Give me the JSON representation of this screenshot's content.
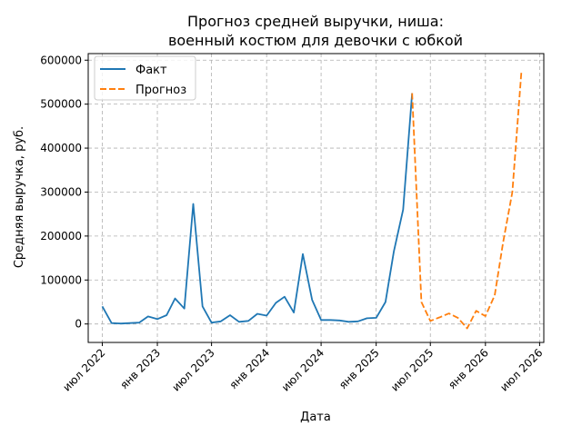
{
  "chart_data": {
    "type": "line",
    "title_lines": [
      "Прогноз средней выручки, ниша:",
      "военный костюм для девочки с юбкой"
    ],
    "xlabel": "Дата",
    "ylabel": "Средняя выручка, руб.",
    "x_range": [
      "2022-05-15",
      "2026-07-15"
    ],
    "ylim": [
      -42000,
      615000
    ],
    "grid": true,
    "legend_position": "top-left",
    "x_ticks": [
      {
        "date": "2022-07-01",
        "label": "июл 2022"
      },
      {
        "date": "2023-01-01",
        "label": "янв 2023"
      },
      {
        "date": "2023-07-01",
        "label": "июл 2023"
      },
      {
        "date": "2024-01-01",
        "label": "янв 2024"
      },
      {
        "date": "2024-07-01",
        "label": "июл 2024"
      },
      {
        "date": "2025-01-01",
        "label": "янв 2025"
      },
      {
        "date": "2025-07-01",
        "label": "июл 2025"
      },
      {
        "date": "2026-01-01",
        "label": "янв 2026"
      },
      {
        "date": "2026-07-01",
        "label": "июл 2026"
      }
    ],
    "y_ticks": [
      {
        "value": 0,
        "label": "0"
      },
      {
        "value": 100000,
        "label": "100000"
      },
      {
        "value": 200000,
        "label": "200000"
      },
      {
        "value": 300000,
        "label": "300000"
      },
      {
        "value": 400000,
        "label": "400000"
      },
      {
        "value": 500000,
        "label": "500000"
      },
      {
        "value": 600000,
        "label": "600000"
      }
    ],
    "series": [
      {
        "name": "Факт",
        "color": "#1f77b4",
        "style": "solid",
        "points": [
          [
            "2022-07-01",
            40000
          ],
          [
            "2022-08-01",
            2000
          ],
          [
            "2022-09-01",
            1000
          ],
          [
            "2022-10-01",
            2000
          ],
          [
            "2022-11-01",
            3000
          ],
          [
            "2022-12-01",
            17000
          ],
          [
            "2023-01-01",
            11000
          ],
          [
            "2023-02-01",
            20000
          ],
          [
            "2023-03-01",
            58000
          ],
          [
            "2023-04-01",
            35000
          ],
          [
            "2023-05-01",
            273000
          ],
          [
            "2023-06-01",
            40000
          ],
          [
            "2023-07-01",
            3000
          ],
          [
            "2023-08-01",
            6000
          ],
          [
            "2023-09-01",
            20000
          ],
          [
            "2023-10-01",
            5000
          ],
          [
            "2023-11-01",
            7000
          ],
          [
            "2023-12-01",
            23000
          ],
          [
            "2024-01-01",
            19000
          ],
          [
            "2024-02-01",
            48000
          ],
          [
            "2024-03-01",
            62000
          ],
          [
            "2024-04-01",
            26000
          ],
          [
            "2024-05-01",
            159000
          ],
          [
            "2024-06-01",
            55000
          ],
          [
            "2024-07-01",
            9000
          ],
          [
            "2024-08-01",
            9000
          ],
          [
            "2024-09-01",
            8000
          ],
          [
            "2024-10-01",
            5000
          ],
          [
            "2024-11-01",
            6000
          ],
          [
            "2024-12-01",
            13000
          ],
          [
            "2025-01-01",
            14000
          ],
          [
            "2025-02-01",
            50000
          ],
          [
            "2025-03-01",
            165000
          ],
          [
            "2025-04-01",
            260000
          ],
          [
            "2025-05-01",
            525000
          ]
        ]
      },
      {
        "name": "Прогноз",
        "color": "#ff7f0e",
        "style": "dashed",
        "points": [
          [
            "2025-05-01",
            525000
          ],
          [
            "2025-06-01",
            50000
          ],
          [
            "2025-07-01",
            7000
          ],
          [
            "2025-08-01",
            15000
          ],
          [
            "2025-09-01",
            24000
          ],
          [
            "2025-10-01",
            14000
          ],
          [
            "2025-11-01",
            -10000
          ],
          [
            "2025-12-01",
            30000
          ],
          [
            "2026-01-01",
            18000
          ],
          [
            "2026-02-01",
            65000
          ],
          [
            "2026-03-01",
            185000
          ],
          [
            "2026-04-01",
            300000
          ],
          [
            "2026-05-01",
            572000
          ]
        ]
      }
    ]
  }
}
